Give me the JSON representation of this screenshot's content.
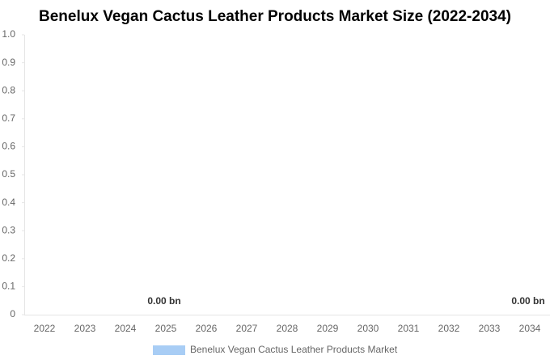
{
  "chart_data": {
    "type": "bar",
    "title": "Benelux Vegan Cactus Leather Products Market Size (2022-2034)",
    "categories": [
      "2022",
      "2023",
      "2024",
      "2025",
      "2026",
      "2027",
      "2028",
      "2029",
      "2030",
      "2031",
      "2032",
      "2033",
      "2034"
    ],
    "series": [
      {
        "name": "Benelux Vegan Cactus Leather Products Market",
        "color": "#a8cdf5",
        "values": [
          0,
          0,
          0,
          0,
          0,
          0,
          0,
          0,
          0,
          0,
          0,
          0,
          0
        ],
        "value_labels": [
          null,
          null,
          null,
          "0.00 bn",
          null,
          null,
          null,
          null,
          null,
          null,
          null,
          null,
          "0.00 bn"
        ]
      }
    ],
    "ylim": [
      0,
      1
    ],
    "yticks": [
      0,
      0.1,
      0.2,
      0.3,
      0.4,
      0.5,
      0.6,
      0.7,
      0.8,
      0.9,
      {
        "value": 1,
        "label": "1.0"
      }
    ],
    "grid": false
  }
}
